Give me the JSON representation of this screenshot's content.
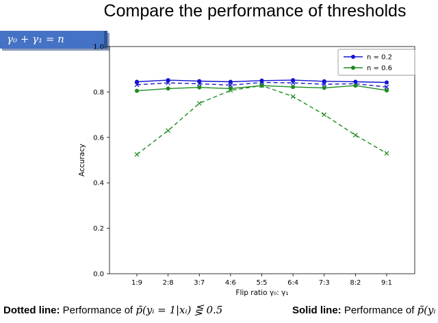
{
  "slide": {
    "title": "Compare the performance of thresholds",
    "badge": "γ₀ + γ₁ = n",
    "caption_left": {
      "bold": "Dotted line:",
      "text": " Performance of ",
      "math": "p̃(yᵢ = 1|xᵢ) ⋚ 0.5"
    },
    "caption_right": {
      "bold": "Solid line:",
      "text": " Performance of ",
      "math": "p̃(yᵢ"
    }
  },
  "colors": {
    "badge_bg": "#4472c4",
    "badge_edge": "#2e5395",
    "blue_series": "#1313cf",
    "green_series": "#1e8a1e"
  },
  "chart_data": {
    "type": "line",
    "title": "",
    "xlabel": "Flip ratio γ₀: γ₁",
    "ylabel": "Accuracy",
    "categories": [
      "1:9",
      "2:8",
      "3:7",
      "4:6",
      "5:5",
      "6:4",
      "7:3",
      "8:2",
      "9:1"
    ],
    "ylim": [
      0.0,
      1.0
    ],
    "yticks": [
      0.0,
      0.2,
      0.4,
      0.6,
      0.8,
      1.0
    ],
    "grid": false,
    "legend": {
      "position": "upper right",
      "entries": [
        {
          "label": "n = 0.2",
          "color": "#1313cf"
        },
        {
          "label": "n = 0.6",
          "color": "#1e8a1e"
        }
      ]
    },
    "series": [
      {
        "name": "n = 0.2 solid",
        "color": "#1313cf",
        "style": "solid",
        "marker": "circle",
        "values": [
          0.845,
          0.852,
          0.848,
          0.845,
          0.85,
          0.852,
          0.847,
          0.845,
          0.842
        ]
      },
      {
        "name": "n = 0.2 dotted",
        "color": "#1313cf",
        "style": "dashed",
        "marker": "x",
        "values": [
          0.832,
          0.84,
          0.836,
          0.83,
          0.842,
          0.84,
          0.834,
          0.836,
          0.822
        ]
      },
      {
        "name": "n = 0.6 solid",
        "color": "#1e8a1e",
        "style": "solid",
        "marker": "circle",
        "values": [
          0.805,
          0.815,
          0.82,
          0.815,
          0.828,
          0.822,
          0.818,
          0.828,
          0.807
        ]
      },
      {
        "name": "n = 0.6 dotted",
        "color": "#1e8a1e",
        "style": "dashed",
        "marker": "x",
        "values": [
          0.525,
          0.63,
          0.75,
          0.807,
          0.828,
          0.78,
          0.7,
          0.61,
          0.53
        ]
      }
    ]
  }
}
